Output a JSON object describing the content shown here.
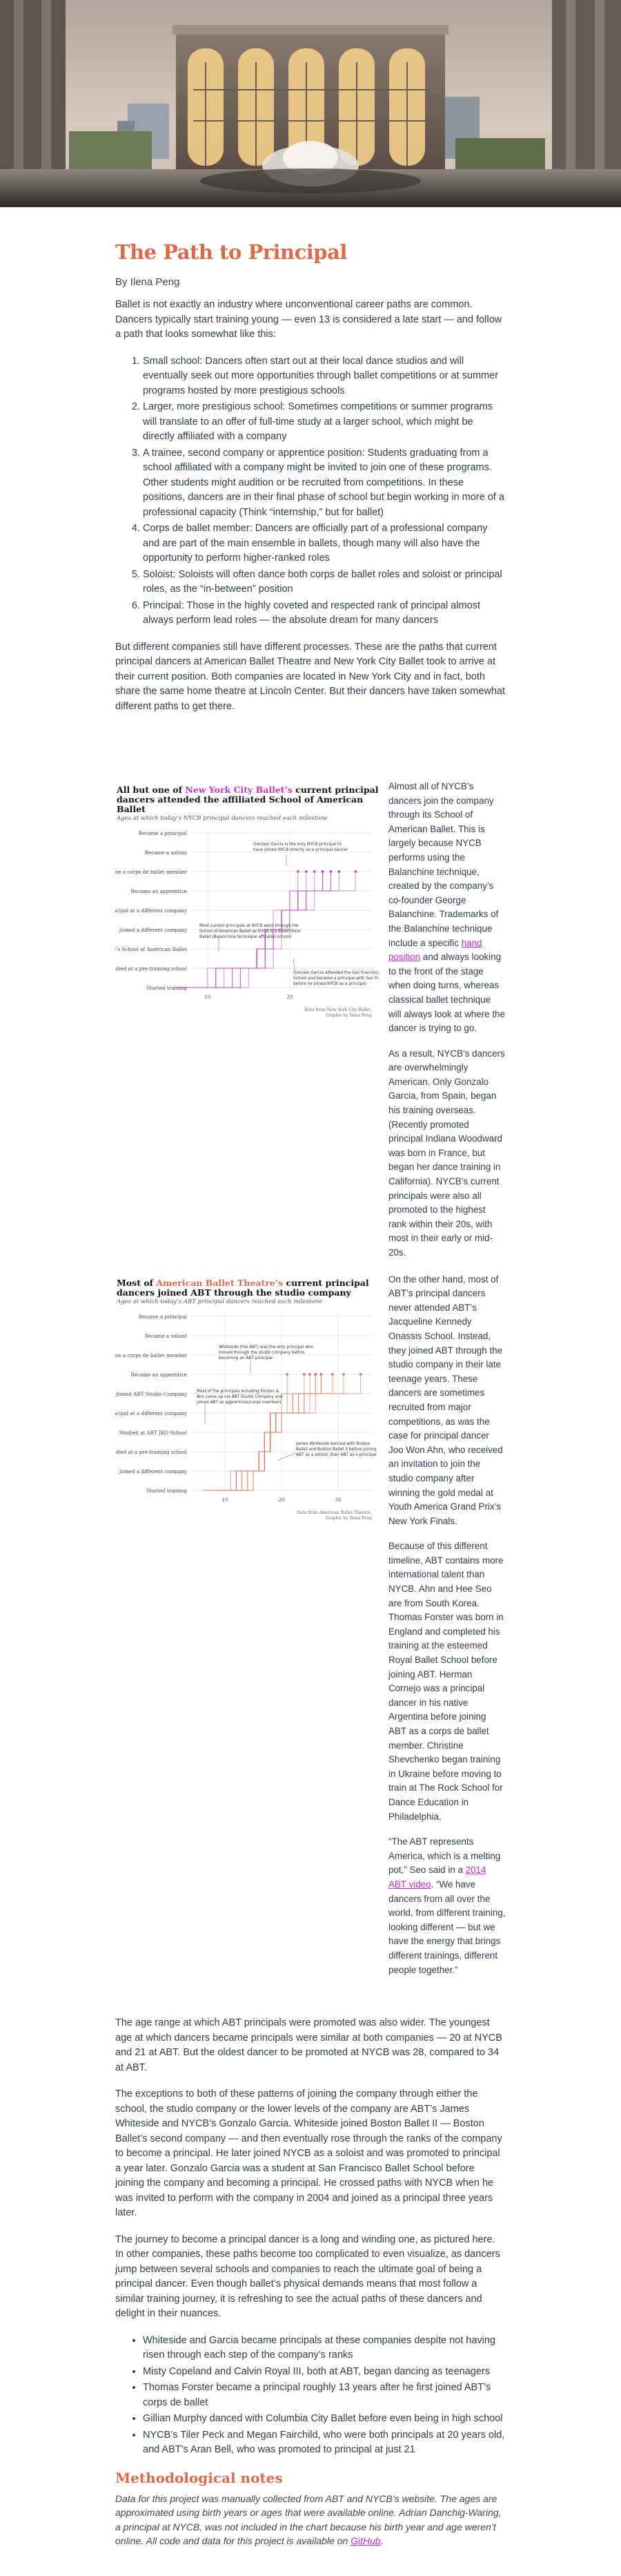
{
  "article": {
    "title": "The Path to Principal",
    "byline": "By Ilena Peng",
    "intro_paragraph": "Ballet is not exactly an industry where unconventional career paths are common. Dancers typically start training young — even 13 is considered a late start — and follow a path that looks somewhat like this:",
    "steps": [
      "Small school: Dancers often start out at their local dance studios and will eventually seek out more opportunities through ballet competitions or at summer programs hosted by more prestigious schools",
      "Larger, more prestigious school: Sometimes competitions or summer programs will translate to an offer of full-time study at a larger school, which might be directly affiliated with a company",
      "A trainee, second company or apprentice position: Students graduating from a school affiliated with a company might be invited to join one of these programs. Other students might audition or be recruited from competitions. In these positions, dancers are in their final phase of school but begin working in more of a professional capacity (Think “internship,” but for ballet)",
      "Corps de ballet member: Dancers are officially part of a professional company and are part of the main ensemble in ballets, though many will also have the opportunity to perform higher-ranked roles",
      "Soloist: Soloists will often dance both corps de ballet roles and soloist or principal roles, as the “in-between” position",
      "Principal: Those in the highly coveted and respected rank of principal almost always perform lead roles — the absolute dream for many dancers"
    ],
    "different_paths_paragraph": "But different companies still have different processes. These are the paths that current principal dancers at American Ballet Theatre and New York City Ballet took to arrive at their current position. Both companies are located in New York City and in fact, both share the same home theatre at Lincoln Center. But their dancers have taken somewhat different paths to get there.",
    "nycb_text": {
      "p1_before_link": "Almost all of NYCB’s dancers join the company through its School of American Ballet. This is largely because NYCB performs using the Balanchine technique, created by the company’s co-founder George Balanchine. Trademarks of the Balanchine technique include a specific ",
      "p1_link": "hand position",
      "p1_after_link": " and always looking to the front of the stage when doing turns, whereas classical ballet technique will always look at where the dancer is trying to go.",
      "p2": "As a result, NYCB’s dancers are overwhelmingly American. Only Gonzalo Garcia, from Spain, began his training overseas. (Recently promoted principal Indiana Woodward was born in France, but began her dance training in California). NYCB’s current principals were also all promoted to the highest rank within their 20s, with most in their early or mid-20s."
    },
    "abt_text": {
      "p1": "On the other hand, most of ABT’s principal dancers never attended ABT’s Jacqueline Kennedy Onassis School. Instead, they joined ABT through the studio company in their late teenage years. These dancers are sometimes recruited from major competitions, as was the case for principal dancer Joo Won Ahn, who received an invitation to join the studio company after winning the gold medal at Youth America Grand Prix’s New York Finals.",
      "p2": "Because of this different timeline, ABT contains more international talent than NYCB. Ahn and Hee Seo are from South Korea. Thomas Forster was born in England and completed his training at the esteemed Royal Ballet School before joining ABT. Herman Cornejo was a principal dancer in his native Argentina before joining ABT as a corps de ballet member. Christine Shevchenko began training in Ukraine before moving to train at The Rock School for Dance Education in Philadelphia.",
      "quote_before_link": "“The ABT represents America, which is a melting pot,” Seo said in a ",
      "quote_link": "2014 ABT video",
      "quote_after_link": ". “We have dancers from all over the world, from different training, looking different — but we have the energy that brings different trainings, different people together.”"
    },
    "age_paragraph": "The age range at which ABT principals were promoted was also wider. The youngest age at which dancers became principals were similar at both companies — 20 at NYCB and 21 at ABT. But the oldest dancer to be promoted at NYCB was 28, compared to 34 at ABT.",
    "exceptions_paragraph": "The exceptions to both of these patterns of joining the company through either the school, the studio company or the lower levels of the company are ABT’s James Whiteside and NYCB’s Gonzalo Garcia. Whiteside joined Boston Ballet II — Boston Ballet’s second company — and then eventually rose through the ranks of the company to become a principal. He later joined NYCB as a soloist and was promoted to principal a year later. Gonzalo Garcia was a student at San Francisco Ballet School before joining the company and becoming a principal. He crossed paths with NYCB when he was invited to perform with the company in 2004 and joined as a principal three years later.",
    "journey_paragraph": "The journey to become a principal dancer is a long and winding one, as pictured here. In other companies, these paths become too complicated to even visualize, as dancers jump between several schools and companies to reach the ultimate goal of being a principal dancer. Even though ballet’s physical demands means that most follow a similar training journey, it is refreshing to see the actual paths of these dancers and delight in their nuances.",
    "facts": [
      "Whiteside and Garcia became principals at these companies despite not having risen through each step of the company’s ranks",
      "Misty Copeland and Calvin Royal III, both at ABT, began dancing as teenagers",
      "Thomas Forster became a principal roughly 13 years after he first joined ABT’s corps de ballet",
      "Gillian Murphy danced with Columbia City Ballet before even being in high school",
      "NYCB’s Tiler Peck and Megan Fairchild, who were both principals at 20 years old, and ABT’s Aran Bell, who was promoted to principal at just 21"
    ],
    "notes_heading": "Methodological notes",
    "notes_before_link": "Data for this project was manually collected from ABT and NYCB’s website. The ages are approximated using birth years or ages that were available online. Adrian Danchig-Waring, a principal at NYCB, was not included in the chart because his birth year and age weren’t online. All code and data for this project is available on ",
    "notes_link": "GitHub",
    "notes_after_link": "."
  },
  "charts": {
    "nycb": {
      "title_prefix": "All but one of ",
      "title_highlight": "New York City Ballet’s",
      "title_suffix": " current principal dancers attended the affiliated School of American Ballet",
      "subtitle": "Ages at which today’s NYCB principal dancers reached each milestone",
      "source_line1": "Data from New York City Ballet,",
      "source_line2": "Graphic by Ilena Peng",
      "annotations": [
        {
          "lines": [
            "Gonzalo Garcia is the only NYCB principal to",
            "have joined NYCB directly as a principal dancer"
          ]
        },
        {
          "lines": [
            "Most current principals at NYCB went through the",
            "School of American Ballet as NYCB is a Balanchine",
            "Ballet (Balanchine technique affiliated school)"
          ]
        },
        {
          "lines": [
            "Gonzalo Garcia attended the San Francisco Ballet",
            "School and became a principal with San Francisco",
            "before he joined NYCB as a principal"
          ]
        }
      ]
    },
    "abt": {
      "title_prefix": "Most of ",
      "title_highlight": "American Ballet Theatre’s",
      "title_suffix": " current principal dancers joined ABT through the studio company",
      "subtitle": "Ages at which today’s ABT principal dancers reached each milestone",
      "source_line1": "Data from American Ballet Theatre,",
      "source_line2": "Graphic by Ilena Peng",
      "annotations": [
        {
          "lines": [
            "Whiteside (the ABT) was the only principal who",
            "moved through the studio company before",
            "becoming an ABT principal"
          ]
        },
        {
          "lines": [
            "Most of the principals including Forster &",
            "Ahn came up via ABT Studio Company and",
            "joined ABT as apprentices/corps members"
          ]
        },
        {
          "lines": [
            "James Whiteside danced with Boston",
            "Ballet and Boston Ballet II before joining",
            "ABT as a soloist, then ABT as a principal"
          ]
        }
      ]
    }
  },
  "chart_data": [
    {
      "type": "line",
      "name": "nycb",
      "color": "#c43fc4",
      "xlim": [
        8,
        30
      ],
      "x_ticks": [
        10,
        20
      ],
      "levels": [
        "Became a principal",
        "Became a soloist",
        "Became a corps de ballet member",
        "Became an apprentice",
        "Promoted to principal at a different company",
        "Joined a different company",
        "Studied at NYCB’s School of American Ballet",
        "Studied at a pre-training school",
        "Started training"
      ],
      "series": [
        {
          "x": [
            6,
            11,
            16,
            17,
            19,
            22,
            24
          ]
        },
        {
          "x": [
            7,
            11,
            16,
            17,
            19,
            20,
            22
          ]
        },
        {
          "x": [
            8,
            12,
            16,
            17,
            19,
            21,
            23
          ]
        },
        {
          "x": [
            8,
            13,
            16,
            17,
            18,
            20,
            21
          ]
        },
        {
          "x": [
            9,
            13,
            17,
            18,
            19,
            21,
            24
          ]
        },
        {
          "x": [
            10,
            14,
            16,
            17,
            19,
            22,
            25
          ]
        },
        {
          "x": [
            6,
            10,
            17,
            18,
            19,
            21,
            26
          ]
        },
        {
          "x": [
            7,
            11,
            16,
            17,
            20,
            23,
            28
          ]
        },
        {
          "x": [
            9,
            14,
            17,
            18,
            19,
            21,
            24
          ]
        },
        {
          "x": [
            11,
            15,
            18,
            19,
            20,
            22,
            25
          ]
        }
      ]
    },
    {
      "type": "line",
      "name": "abt",
      "color": "#e0694a",
      "xlim": [
        4,
        36
      ],
      "x_ticks": [
        10,
        20,
        30
      ],
      "levels": [
        "Became a principal",
        "Became a soloist",
        "Became a corps de ballet member",
        "Became an apprentice",
        "Joined ABT Studio Company",
        "Promoted to principal at a different company",
        "Studied at ABT JKO School",
        "Studied at a pre-training school",
        "Joined a different company",
        "Started training"
      ],
      "series": [
        {
          "x": [
            7,
            13,
            17,
            18,
            19,
            24,
            27
          ]
        },
        {
          "x": [
            6,
            12,
            16,
            17,
            18,
            22,
            25
          ]
        },
        {
          "x": [
            13,
            15,
            17,
            18,
            19,
            23,
            26
          ]
        },
        {
          "x": [
            8,
            11,
            16,
            17,
            18,
            21,
            24
          ]
        },
        {
          "x": [
            9,
            14,
            17,
            18,
            20,
            26,
            34
          ]
        },
        {
          "x": [
            6,
            12,
            16,
            17,
            18,
            20,
            21
          ]
        },
        {
          "x": [
            10,
            14,
            17,
            18,
            19,
            25,
            29
          ]
        },
        {
          "x": [
            8,
            13,
            16,
            17,
            18,
            23,
            27
          ]
        },
        {
          "x": [
            12,
            15,
            17,
            18,
            20,
            24,
            31
          ]
        },
        {
          "x": [
            7,
            12,
            17,
            18,
            19,
            22,
            26
          ]
        }
      ]
    }
  ],
  "colors": {
    "title_accent": "#e0694a",
    "link_accent": "#c42ad9",
    "nycb_line": "#c43fc4",
    "abt_line": "#e0694a"
  }
}
